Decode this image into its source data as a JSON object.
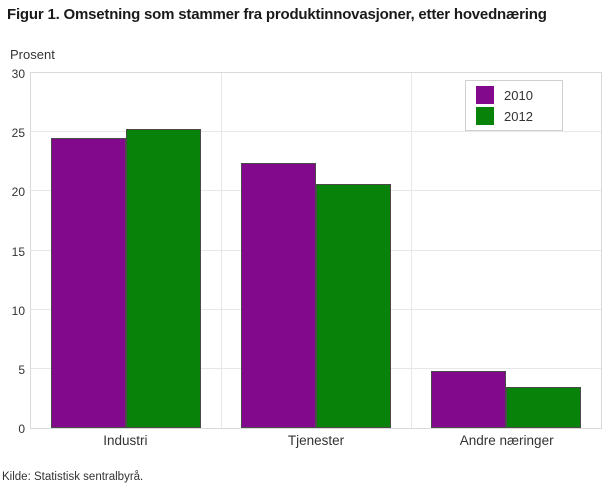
{
  "chart_data": {
    "type": "bar",
    "title": "Figur 1. Omsetning som stammer fra produktinnovasjoner, etter hovednæring",
    "ylabel": "Prosent",
    "xlabel": "",
    "categories": [
      "Industri",
      "Tjenester",
      "Andre næringer"
    ],
    "series": [
      {
        "name": "2010",
        "color": "#82098c",
        "values": [
          24.5,
          22.4,
          4.8
        ]
      },
      {
        "name": "2012",
        "color": "#098209",
        "values": [
          25.3,
          20.6,
          3.5
        ]
      }
    ],
    "ylim": [
      0,
      30
    ],
    "yticks": [
      0,
      5,
      10,
      15,
      20,
      25,
      30
    ],
    "grid": true,
    "gridline_color": "#e7e7e7",
    "plot_border_color": "#d9d9d9",
    "bar_border_color": "#4a4a4a",
    "legend_position": "top-right",
    "source": "Kilde: Statistisk sentralbyrå."
  }
}
